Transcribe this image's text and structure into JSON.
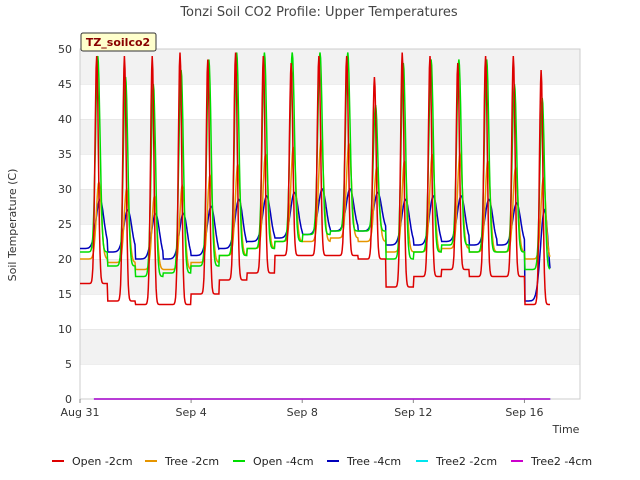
{
  "chart_data": {
    "type": "line",
    "title": "Tonzi Soil CO2 Profile: Upper Temperatures",
    "xlabel": "Time",
    "ylabel": "Soil Temperature (C)",
    "badge": "TZ_soilco2",
    "ylim": [
      0,
      50
    ],
    "yticks": [
      0,
      5,
      10,
      15,
      20,
      25,
      30,
      35,
      40,
      45,
      50
    ],
    "xlim": [
      "2023-08-31",
      "2023-09-18"
    ],
    "xticks": [
      {
        "label": "Aug 31",
        "day": 0
      },
      {
        "label": "Sep 4",
        "day": 4
      },
      {
        "label": "Sep 8",
        "day": 8
      },
      {
        "label": "Sep 12",
        "day": 12
      },
      {
        "label": "Sep 16",
        "day": 16
      }
    ],
    "grid": "horizontal bands",
    "legend": "bottom",
    "days": [
      0,
      1,
      2,
      3,
      4,
      5,
      6,
      7,
      8,
      9,
      10,
      11,
      12,
      13,
      14,
      15,
      16
    ],
    "series": [
      {
        "name": "Open -2cm",
        "color": "#dd0000",
        "daily_max": [
          49,
          49,
          49,
          49.5,
          48.5,
          49.5,
          49,
          48,
          49,
          49,
          46,
          49.5,
          49,
          48,
          49,
          49,
          47
        ],
        "daily_min": [
          16.5,
          14,
          13.5,
          13.5,
          15,
          17,
          18,
          20.5,
          20.5,
          20.5,
          20,
          16,
          17.5,
          18.5,
          17.5,
          17.5,
          13.5
        ]
      },
      {
        "name": "Tree -2cm",
        "color": "#e69500",
        "daily_max": [
          31,
          30,
          29,
          30.5,
          32,
          33.5,
          35,
          36,
          37,
          36.5,
          33,
          34,
          35,
          35,
          34,
          33,
          31.5
        ],
        "daily_min": [
          20,
          19.5,
          18.5,
          18.5,
          19.5,
          20.5,
          21.5,
          22.5,
          22.5,
          23,
          22.5,
          21,
          21,
          21.5,
          21,
          21,
          20
        ]
      },
      {
        "name": "Open -4cm",
        "color": "#00dd00",
        "daily_max": [
          49,
          46,
          45,
          47,
          48.5,
          49.5,
          49.5,
          49.5,
          49.5,
          49.5,
          42,
          48,
          48.5,
          48.5,
          48.5,
          45,
          43
        ],
        "daily_min": [
          21,
          19,
          17.5,
          18,
          19,
          20.5,
          21.5,
          22.5,
          23.5,
          24,
          24,
          20,
          21,
          22,
          21,
          21,
          18.5
        ]
      },
      {
        "name": "Tree -4cm",
        "color": "#0000bb",
        "daily_max": [
          28.5,
          27,
          26.5,
          26.5,
          27.5,
          28.5,
          29,
          29.5,
          30,
          30,
          29.5,
          28.5,
          29,
          29,
          28.5,
          28,
          27
        ],
        "daily_min": [
          21.5,
          21,
          20,
          20,
          20.5,
          21.5,
          22.5,
          23,
          23.5,
          24,
          24,
          22,
          22,
          22.5,
          22,
          22,
          14
        ]
      },
      {
        "name": "Tree2 -2cm",
        "color": "#00e5ee",
        "values": 0
      },
      {
        "name": "Tree2 -4cm",
        "color": "#cc00cc",
        "values": 0
      }
    ]
  }
}
